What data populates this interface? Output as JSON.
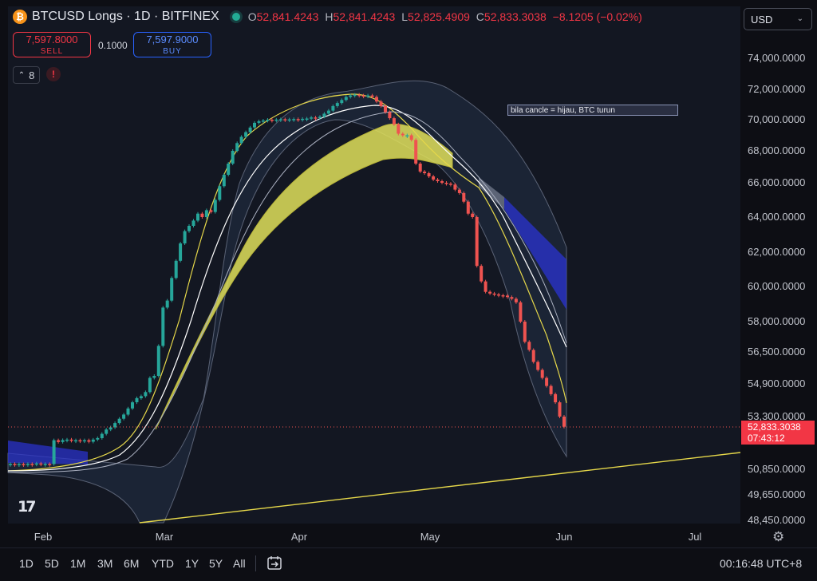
{
  "header": {
    "logo_glyph": "₿",
    "title": "BTCUSD Longs · 1D · BITFINEX",
    "ohlc": {
      "o_label": "O",
      "o": "52,841.4243",
      "h_label": "H",
      "h": "52,841.4243",
      "l_label": "L",
      "l": "52,825.4909",
      "c_label": "C",
      "c": "52,833.3038",
      "change": "−8.1205 (−0.02%)"
    }
  },
  "trade": {
    "sell_price": "7,597.8000",
    "sell_label": "SELL",
    "spread": "0.1000",
    "buy_price": "7,597.9000",
    "buy_label": "BUY"
  },
  "indicators": {
    "count": "8",
    "alert": "!"
  },
  "currency": {
    "value": "USD",
    "chevron": "⌄"
  },
  "note": "bila cancle = hijau, BTC turun",
  "price_tag": {
    "price": "52,833.3038",
    "countdown": "07:43:12"
  },
  "logo_text": "17",
  "timeframes": [
    "1D",
    "5D",
    "1M",
    "3M",
    "6M",
    "YTD",
    "1Y",
    "5Y",
    "All"
  ],
  "clock": "00:16:48 UTC+8",
  "colors": {
    "up": "#26a69a",
    "down": "#ef5350",
    "cloud": "#e0e05a",
    "channel": "#2932c8",
    "trend": "#e6d84a"
  },
  "chart_data": {
    "type": "candlestick",
    "y_axis_labels": [
      "74,000.0000",
      "72,000.0000",
      "70,000.0000",
      "68,000.0000",
      "66,000.0000",
      "64,000.0000",
      "62,000.0000",
      "60,000.0000",
      "58,000.0000",
      "56,500.0000",
      "54,900.0000",
      "53,300.0000",
      "50,850.0000",
      "49,650.0000",
      "48,450.0000"
    ],
    "x_axis_labels": [
      "Feb",
      "Mar",
      "Apr",
      "May",
      "Jun",
      "Jul"
    ],
    "current_price": 52833.3038,
    "candles": [
      {
        "o": 51100,
        "c": 51100
      },
      {
        "o": 51100,
        "c": 51050
      },
      {
        "o": 51050,
        "c": 51090
      },
      {
        "o": 51090,
        "c": 51060
      },
      {
        "o": 51060,
        "c": 51100
      },
      {
        "o": 51100,
        "c": 51070
      },
      {
        "o": 51070,
        "c": 51120
      },
      {
        "o": 51120,
        "c": 51080
      },
      {
        "o": 51080,
        "c": 51100
      },
      {
        "o": 51100,
        "c": 51090
      },
      {
        "o": 51090,
        "c": 52200
      },
      {
        "o": 52200,
        "c": 52120
      },
      {
        "o": 52120,
        "c": 52210
      },
      {
        "o": 52210,
        "c": 52230
      },
      {
        "o": 52230,
        "c": 52170
      },
      {
        "o": 52170,
        "c": 52200
      },
      {
        "o": 52200,
        "c": 52150
      },
      {
        "o": 52150,
        "c": 52200
      },
      {
        "o": 52200,
        "c": 52130
      },
      {
        "o": 52130,
        "c": 52230
      },
      {
        "o": 52230,
        "c": 52300
      },
      {
        "o": 52300,
        "c": 52500
      },
      {
        "o": 52500,
        "c": 52700
      },
      {
        "o": 52700,
        "c": 52800
      },
      {
        "o": 52800,
        "c": 53000
      },
      {
        "o": 53000,
        "c": 53200
      },
      {
        "o": 53200,
        "c": 53400
      },
      {
        "o": 53400,
        "c": 53700
      },
      {
        "o": 53700,
        "c": 54000
      },
      {
        "o": 54000,
        "c": 54200
      },
      {
        "o": 54200,
        "c": 54300
      },
      {
        "o": 54300,
        "c": 54500
      },
      {
        "o": 54500,
        "c": 55200
      },
      {
        "o": 55200,
        "c": 55300
      },
      {
        "o": 55300,
        "c": 56800
      },
      {
        "o": 56800,
        "c": 58800
      },
      {
        "o": 58800,
        "c": 59200
      },
      {
        "o": 59200,
        "c": 60500
      },
      {
        "o": 60500,
        "c": 61500
      },
      {
        "o": 61500,
        "c": 62500
      },
      {
        "o": 62500,
        "c": 63200
      },
      {
        "o": 63200,
        "c": 63500
      },
      {
        "o": 63500,
        "c": 63800
      },
      {
        "o": 63800,
        "c": 64200
      },
      {
        "o": 64200,
        "c": 64000
      },
      {
        "o": 64000,
        "c": 64400
      },
      {
        "o": 64400,
        "c": 64300
      },
      {
        "o": 64300,
        "c": 65000
      },
      {
        "o": 65000,
        "c": 65800
      },
      {
        "o": 65800,
        "c": 66500
      },
      {
        "o": 66500,
        "c": 67200
      },
      {
        "o": 67200,
        "c": 68000
      },
      {
        "o": 68000,
        "c": 68500
      },
      {
        "o": 68500,
        "c": 68900
      },
      {
        "o": 68900,
        "c": 69200
      },
      {
        "o": 69200,
        "c": 69500
      },
      {
        "o": 69500,
        "c": 69800
      },
      {
        "o": 69800,
        "c": 69900
      },
      {
        "o": 69900,
        "c": 69950
      },
      {
        "o": 69950,
        "c": 70000
      },
      {
        "o": 70000,
        "c": 69980
      },
      {
        "o": 69980,
        "c": 70010
      },
      {
        "o": 70010,
        "c": 70030
      },
      {
        "o": 70030,
        "c": 70000
      },
      {
        "o": 70000,
        "c": 70020
      },
      {
        "o": 70020,
        "c": 70040
      },
      {
        "o": 70040,
        "c": 70000
      },
      {
        "o": 70000,
        "c": 70060
      },
      {
        "o": 70060,
        "c": 70080
      },
      {
        "o": 70080,
        "c": 70150
      },
      {
        "o": 70150,
        "c": 70100
      },
      {
        "o": 70100,
        "c": 70200
      },
      {
        "o": 70200,
        "c": 70400
      },
      {
        "o": 70400,
        "c": 70600
      },
      {
        "o": 70600,
        "c": 70900
      },
      {
        "o": 70900,
        "c": 71100
      },
      {
        "o": 71100,
        "c": 71300
      },
      {
        "o": 71300,
        "c": 71500
      },
      {
        "o": 71500,
        "c": 71600
      },
      {
        "o": 71600,
        "c": 71650
      },
      {
        "o": 71650,
        "c": 71600
      },
      {
        "o": 71600,
        "c": 71580
      },
      {
        "o": 71580,
        "c": 71600
      },
      {
        "o": 71600,
        "c": 71500
      },
      {
        "o": 71500,
        "c": 71200
      },
      {
        "o": 71200,
        "c": 70900
      },
      {
        "o": 70900,
        "c": 70500
      },
      {
        "o": 70500,
        "c": 70100
      },
      {
        "o": 70100,
        "c": 69700
      },
      {
        "o": 69700,
        "c": 69100
      },
      {
        "o": 69100,
        "c": 69000
      },
      {
        "o": 69000,
        "c": 69000
      },
      {
        "o": 69000,
        "c": 68700
      },
      {
        "o": 68700,
        "c": 67200
      },
      {
        "o": 67200,
        "c": 66700
      },
      {
        "o": 66700,
        "c": 66600
      },
      {
        "o": 66600,
        "c": 66400
      },
      {
        "o": 66400,
        "c": 66200
      },
      {
        "o": 66200,
        "c": 66100
      },
      {
        "o": 66100,
        "c": 66000
      },
      {
        "o": 66000,
        "c": 65950
      },
      {
        "o": 65950,
        "c": 65900
      },
      {
        "o": 65900,
        "c": 65600
      },
      {
        "o": 65600,
        "c": 65400
      },
      {
        "o": 65400,
        "c": 64900
      },
      {
        "o": 64900,
        "c": 64200
      },
      {
        "o": 64200,
        "c": 64000
      },
      {
        "o": 64000,
        "c": 61200
      },
      {
        "o": 61200,
        "c": 60300
      },
      {
        "o": 60300,
        "c": 59700
      },
      {
        "o": 59700,
        "c": 59600
      },
      {
        "o": 59600,
        "c": 59550
      },
      {
        "o": 59550,
        "c": 59500
      },
      {
        "o": 59500,
        "c": 59480
      },
      {
        "o": 59480,
        "c": 59400
      },
      {
        "o": 59400,
        "c": 59300
      },
      {
        "o": 59300,
        "c": 59100
      },
      {
        "o": 59100,
        "c": 58000
      },
      {
        "o": 58000,
        "c": 57000
      },
      {
        "o": 57000,
        "c": 56600
      },
      {
        "o": 56600,
        "c": 56000
      },
      {
        "o": 56000,
        "c": 55600
      },
      {
        "o": 55600,
        "c": 55200
      },
      {
        "o": 55200,
        "c": 54800
      },
      {
        "o": 54800,
        "c": 54400
      },
      {
        "o": 54400,
        "c": 54000
      },
      {
        "o": 54000,
        "c": 53300
      },
      {
        "o": 53300,
        "c": 52830
      }
    ]
  }
}
